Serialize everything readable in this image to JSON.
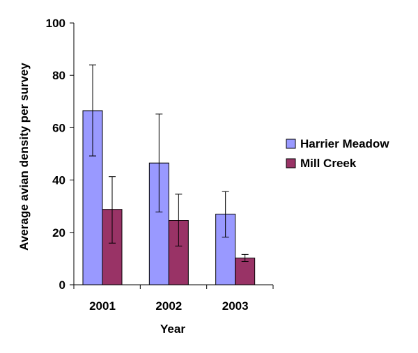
{
  "chart_data": {
    "type": "bar",
    "title": "",
    "xlabel": "Year",
    "ylabel": "Average avian density per survey",
    "categories": [
      "2001",
      "2002",
      "2003"
    ],
    "ylim": [
      0,
      100
    ],
    "yticks": [
      "0",
      "20",
      "40",
      "60",
      "80",
      "100"
    ],
    "grid": false,
    "legend_position": "right",
    "series": [
      {
        "name": "Harrier Meadow",
        "color": "#9999ff",
        "values": [
          66.5,
          46.5,
          27
        ],
        "error_low": [
          49.2,
          27.8,
          18.2
        ],
        "error_high": [
          84,
          65.2,
          35.6
        ]
      },
      {
        "name": "Mill Creek",
        "color": "#993366",
        "values": [
          28.8,
          24.6,
          10.2
        ],
        "error_low": [
          15.9,
          14.8,
          8.9
        ],
        "error_high": [
          41.3,
          34.6,
          11.6
        ]
      }
    ]
  }
}
